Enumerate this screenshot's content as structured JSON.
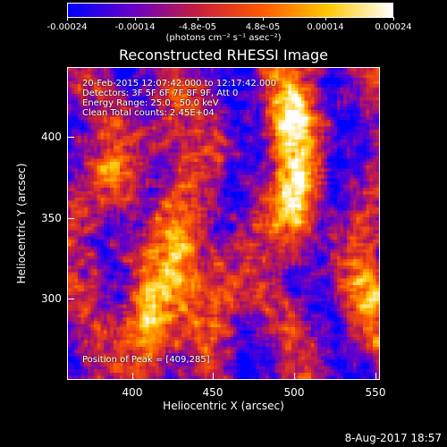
{
  "colorbar": {
    "tick_labels": [
      "-0.00024",
      "-0.00014",
      "-4.8e-05",
      "4.8e-05",
      "0.00014",
      "0.00024"
    ],
    "tick_values": [
      -0.00024,
      -0.00014,
      -4.8e-05,
      4.8e-05,
      0.00014,
      0.00024
    ],
    "range": [
      -0.00024,
      0.00024
    ],
    "unit": "(photons cm⁻² s⁻¹ asec⁻²)",
    "colors": [
      "#0000ff",
      "#6a00c8",
      "#c81e3c",
      "#ff5a00",
      "#ffc800",
      "#ffffff"
    ]
  },
  "chart_data": {
    "type": "heatmap",
    "title": "Reconstructed RHESSI Image",
    "xlabel": "Heliocentric X (arcsec)",
    "ylabel": "Heliocentric Y (arcsec)",
    "xlim": [
      360,
      553
    ],
    "ylim": [
      250,
      443
    ],
    "xticks": [
      400,
      450,
      500,
      550
    ],
    "yticks": [
      300,
      350,
      400
    ],
    "bright_sources": [
      {
        "x": 409,
        "y": 285,
        "intensity": 1.0
      },
      {
        "x": 502,
        "y": 360,
        "intensity": 0.85
      },
      {
        "x": 498,
        "y": 415,
        "intensity": 0.8
      },
      {
        "x": 430,
        "y": 330,
        "intensity": 0.6
      },
      {
        "x": 455,
        "y": 305,
        "intensity": 0.55
      },
      {
        "x": 395,
        "y": 370,
        "intensity": 0.45
      },
      {
        "x": 420,
        "y": 410,
        "intensity": 0.4
      },
      {
        "x": 545,
        "y": 300,
        "intensity": 0.45
      }
    ]
  },
  "annotations": {
    "time_range": "20-Feb-2015 12:07:42.000 to 12:17:42.000",
    "detectors": "Detectors: 3F 5F 6F 7F 8F 9F, Att 0",
    "energy": "Energy Range: 25.0 - 50.0 keV",
    "clean": "Clean     Total counts: 2.45E+04",
    "peak": "Position of Peak = [409,285]"
  },
  "footer": {
    "date": "8-Aug-2017 18:57"
  }
}
